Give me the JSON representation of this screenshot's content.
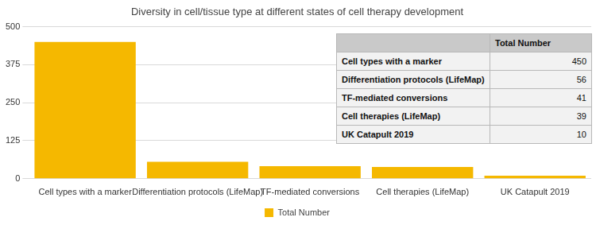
{
  "chart_data": {
    "type": "bar",
    "title": "Diversity in cell/tissue type at different states of cell therapy development",
    "categories": [
      "Cell types with a marker",
      "Differentiation protocols (LifeMap)",
      "TF-mediated conversions",
      "Cell therapies (LifeMap)",
      "UK Catapult 2019"
    ],
    "series": [
      {
        "name": "Total Number",
        "color": "#f5b800",
        "values": [
          450,
          56,
          41,
          39,
          10
        ]
      }
    ],
    "ylim": [
      0,
      500
    ],
    "yticks": [
      0,
      125,
      250,
      375,
      500
    ],
    "grid": true,
    "legend": "bottom"
  },
  "table": {
    "header": [
      "Total Number"
    ],
    "rows": [
      [
        "Cell types with a marker",
        450
      ],
      [
        "Differentiation protocols (LifeMap)",
        56
      ],
      [
        "TF-mediated conversions",
        41
      ],
      [
        "Cell therapies (LifeMap)",
        39
      ],
      [
        "UK Catapult 2019",
        10
      ]
    ]
  }
}
